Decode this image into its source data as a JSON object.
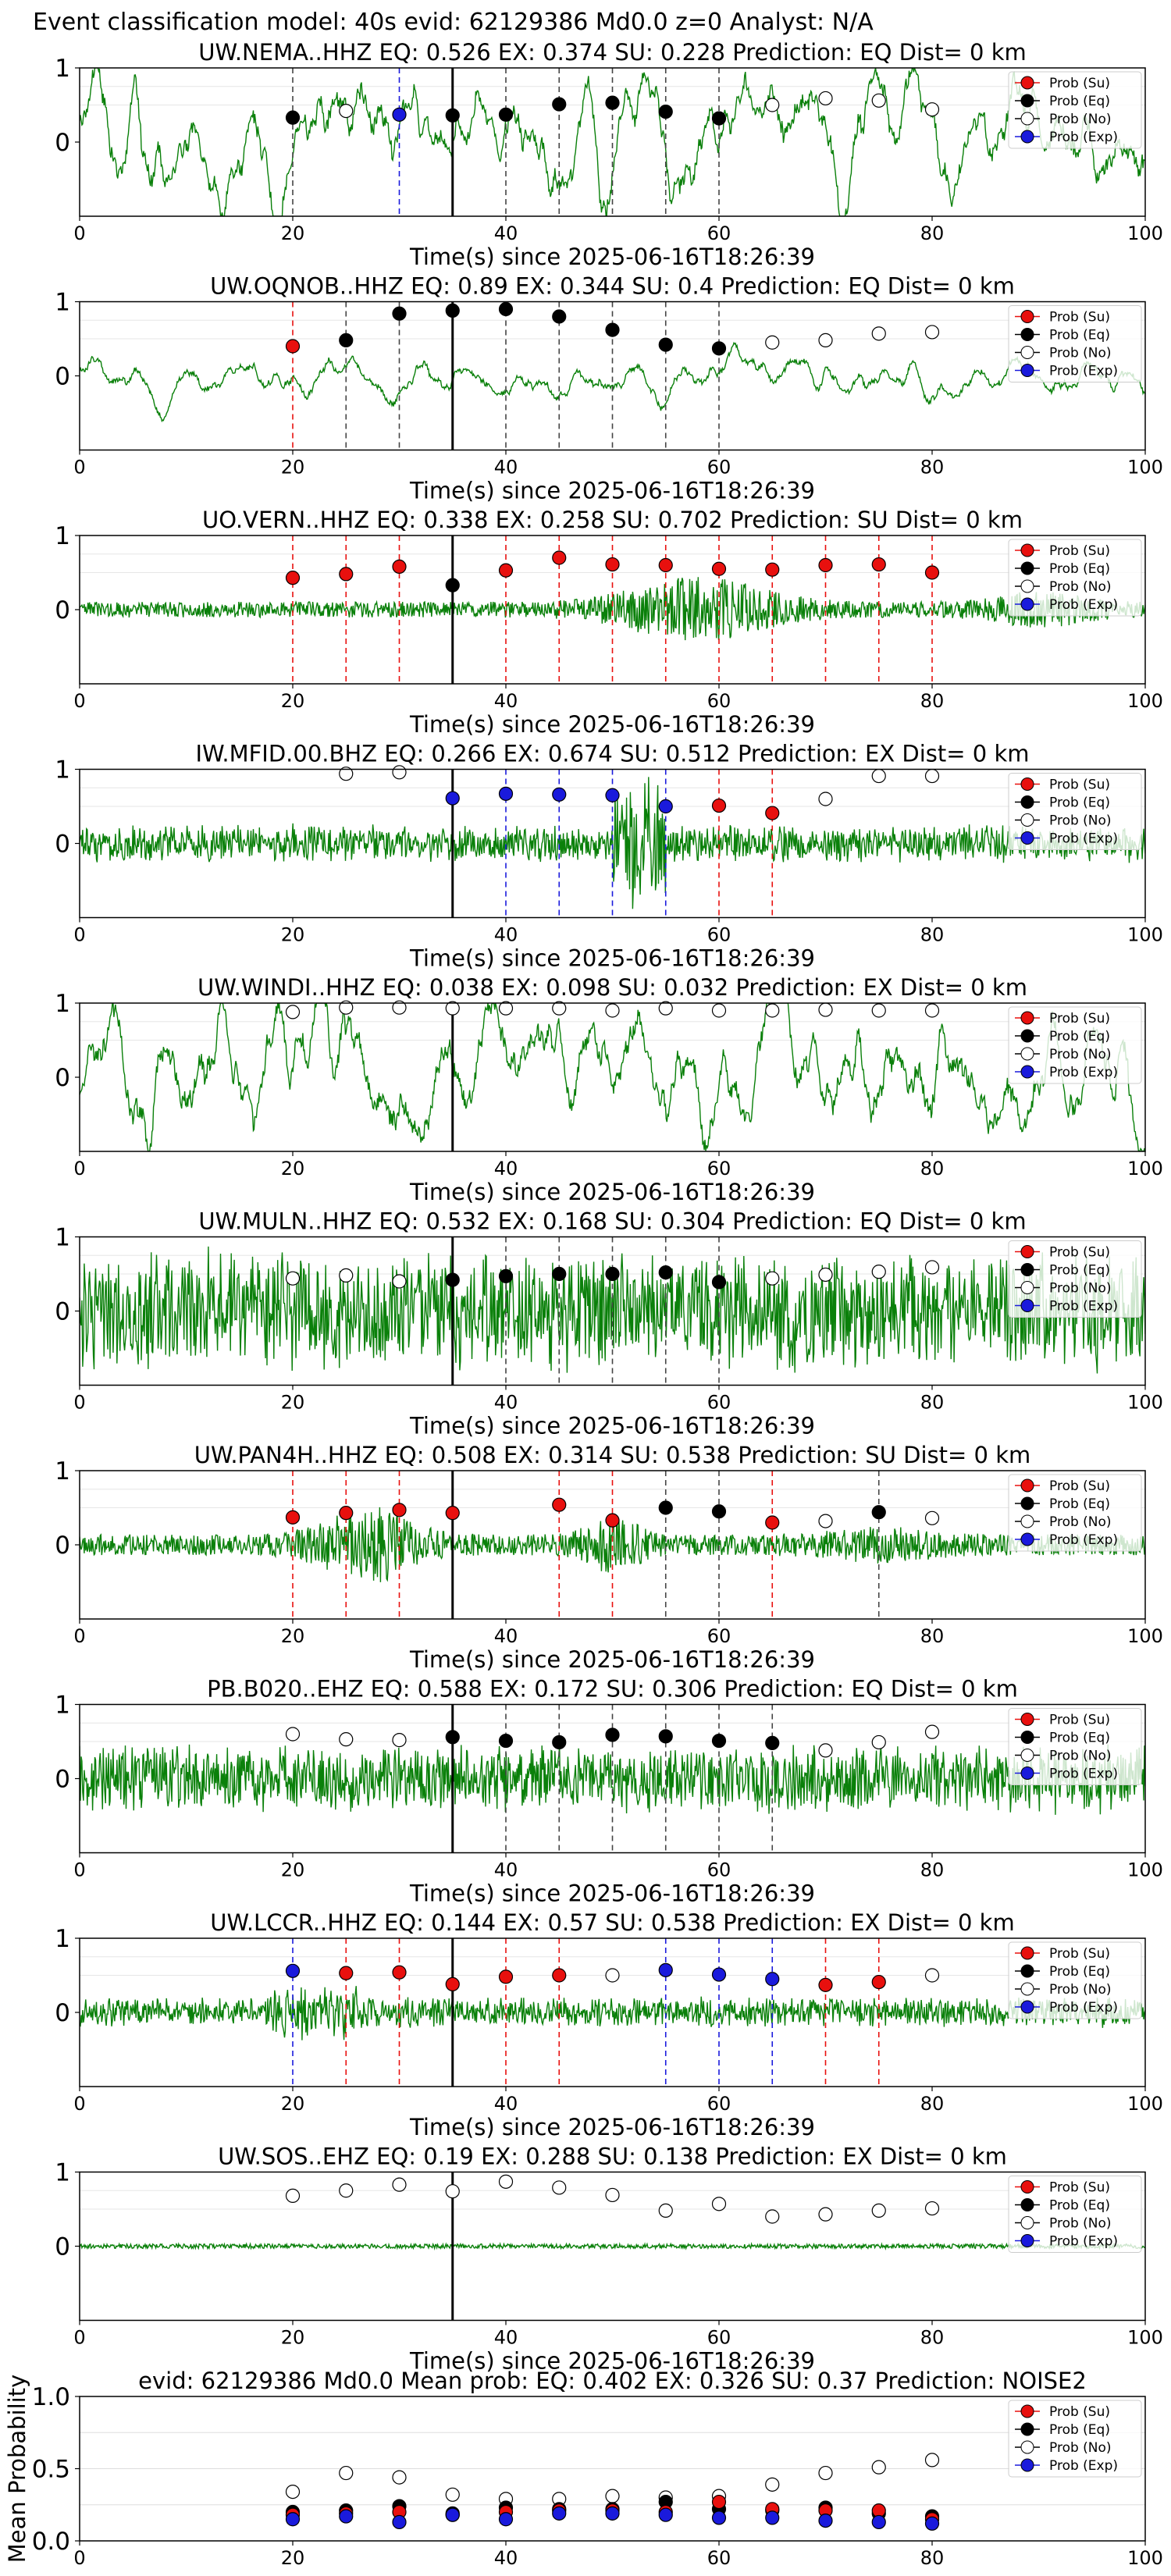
{
  "suptitle": "Event classification model: 40s evid: 62129386 Md0.0 z=0 Analyst: N/A",
  "legend_labels": [
    "Prob (Su)",
    "Prob (Eq)",
    "Prob (No)",
    "Prob (Exp)"
  ],
  "colors": {
    "Su": "#e8100e",
    "Eq": "#000000",
    "No": "#ffffff",
    "Exp": "#1a1adc",
    "trace": "#0a800a"
  },
  "chart_data": [
    {
      "type": "line",
      "title": "UW.NEMA..HHZ   EQ: 0.526  EX: 0.374  SU: 0.228   Prediction: EQ    Dist= 0 km",
      "xlabel": "Time(s) since 2025-06-16T18:26:39",
      "xlim": [
        0,
        100
      ],
      "ylim": [
        -1,
        1
      ],
      "xticks": [
        "0",
        "20",
        "40",
        "60",
        "80",
        "100"
      ],
      "yticks": [
        "1",
        "0"
      ],
      "trace": {
        "style": "lowfreq",
        "amplitude": 0.75,
        "seed": 1
      },
      "event_line_x": 35,
      "points": [
        {
          "x": 20,
          "y": 0.33,
          "class": "Eq"
        },
        {
          "x": 25,
          "y": 0.42,
          "class": "No"
        },
        {
          "x": 30,
          "y": 0.37,
          "class": "Exp"
        },
        {
          "x": 35,
          "y": 0.36,
          "class": "Eq"
        },
        {
          "x": 40,
          "y": 0.37,
          "class": "Eq"
        },
        {
          "x": 45,
          "y": 0.51,
          "class": "Eq"
        },
        {
          "x": 50,
          "y": 0.53,
          "class": "Eq"
        },
        {
          "x": 55,
          "y": 0.41,
          "class": "Eq"
        },
        {
          "x": 60,
          "y": 0.32,
          "class": "Eq"
        },
        {
          "x": 65,
          "y": 0.5,
          "class": "No"
        },
        {
          "x": 70,
          "y": 0.59,
          "class": "No"
        },
        {
          "x": 75,
          "y": 0.56,
          "class": "No"
        },
        {
          "x": 80,
          "y": 0.44,
          "class": "No"
        }
      ]
    },
    {
      "type": "line",
      "title": "UW.OQNOB..HHZ   EQ: 0.89  EX: 0.344  SU: 0.4   Prediction: EQ    Dist= 0 km",
      "xlabel": "Time(s) since 2025-06-16T18:26:39",
      "xlim": [
        0,
        100
      ],
      "ylim": [
        -1,
        1
      ],
      "xticks": [
        "0",
        "20",
        "40",
        "60",
        "80",
        "100"
      ],
      "yticks": [
        "1",
        "0"
      ],
      "trace": {
        "style": "lowfreq",
        "amplitude": 0.25,
        "seed": 2
      },
      "event_line_x": 35,
      "points": [
        {
          "x": 20,
          "y": 0.4,
          "class": "Su"
        },
        {
          "x": 25,
          "y": 0.48,
          "class": "Eq"
        },
        {
          "x": 30,
          "y": 0.84,
          "class": "Eq"
        },
        {
          "x": 35,
          "y": 0.88,
          "class": "Eq"
        },
        {
          "x": 40,
          "y": 0.9,
          "class": "Eq"
        },
        {
          "x": 45,
          "y": 0.8,
          "class": "Eq"
        },
        {
          "x": 50,
          "y": 0.62,
          "class": "Eq"
        },
        {
          "x": 55,
          "y": 0.42,
          "class": "Eq"
        },
        {
          "x": 60,
          "y": 0.37,
          "class": "Eq"
        },
        {
          "x": 65,
          "y": 0.45,
          "class": "No"
        },
        {
          "x": 70,
          "y": 0.48,
          "class": "No"
        },
        {
          "x": 75,
          "y": 0.57,
          "class": "No"
        },
        {
          "x": 80,
          "y": 0.59,
          "class": "No"
        }
      ]
    },
    {
      "type": "line",
      "title": "UO.VERN..HHZ   EQ: 0.338  EX: 0.258  SU: 0.702   Prediction: SU    Dist= 0 km",
      "xlabel": "Time(s) since 2025-06-16T18:26:39",
      "xlim": [
        0,
        100
      ],
      "ylim": [
        -1,
        1
      ],
      "xticks": [
        "0",
        "20",
        "40",
        "60",
        "80",
        "100"
      ],
      "yticks": [
        "1",
        "0"
      ],
      "trace": {
        "style": "burst",
        "amplitude": 0.15,
        "seed": 3
      },
      "event_line_x": 35,
      "points": [
        {
          "x": 20,
          "y": 0.43,
          "class": "Su"
        },
        {
          "x": 25,
          "y": 0.48,
          "class": "Su"
        },
        {
          "x": 30,
          "y": 0.58,
          "class": "Su"
        },
        {
          "x": 35,
          "y": 0.33,
          "class": "Eq"
        },
        {
          "x": 40,
          "y": 0.53,
          "class": "Su"
        },
        {
          "x": 45,
          "y": 0.7,
          "class": "Su"
        },
        {
          "x": 50,
          "y": 0.61,
          "class": "Su"
        },
        {
          "x": 55,
          "y": 0.6,
          "class": "Su"
        },
        {
          "x": 60,
          "y": 0.55,
          "class": "Su"
        },
        {
          "x": 65,
          "y": 0.54,
          "class": "Su"
        },
        {
          "x": 70,
          "y": 0.6,
          "class": "Su"
        },
        {
          "x": 75,
          "y": 0.61,
          "class": "Su"
        },
        {
          "x": 80,
          "y": 0.5,
          "class": "Su"
        }
      ]
    },
    {
      "type": "line",
      "title": "IW.MFID.00.BHZ   EQ: 0.266  EX: 0.674  SU: 0.512   Prediction: EX    Dist= 0 km",
      "xlabel": "Time(s) since 2025-06-16T18:26:39",
      "xlim": [
        0,
        100
      ],
      "ylim": [
        -1,
        1
      ],
      "xticks": [
        "0",
        "20",
        "40",
        "60",
        "80",
        "100"
      ],
      "yticks": [
        "1",
        "0"
      ],
      "trace": {
        "style": "noise",
        "amplitude": 0.25,
        "seed": 4
      },
      "event_line_x": 35,
      "points": [
        {
          "x": 25,
          "y": 0.94,
          "class": "No"
        },
        {
          "x": 30,
          "y": 0.96,
          "class": "No"
        },
        {
          "x": 35,
          "y": 0.61,
          "class": "Exp"
        },
        {
          "x": 40,
          "y": 0.67,
          "class": "Exp"
        },
        {
          "x": 45,
          "y": 0.66,
          "class": "Exp"
        },
        {
          "x": 50,
          "y": 0.65,
          "class": "Exp"
        },
        {
          "x": 55,
          "y": 0.5,
          "class": "Exp"
        },
        {
          "x": 60,
          "y": 0.51,
          "class": "Su"
        },
        {
          "x": 65,
          "y": 0.41,
          "class": "Su"
        },
        {
          "x": 70,
          "y": 0.6,
          "class": "No"
        },
        {
          "x": 75,
          "y": 0.91,
          "class": "No"
        },
        {
          "x": 80,
          "y": 0.91,
          "class": "No"
        }
      ]
    },
    {
      "type": "line",
      "title": "UW.WINDI..HHZ   EQ: 0.038  EX: 0.098  SU: 0.032   Prediction: EX    Dist= 0 km",
      "xlabel": "Time(s) since 2025-06-16T18:26:39",
      "xlim": [
        0,
        100
      ],
      "ylim": [
        -1,
        1
      ],
      "xticks": [
        "0",
        "20",
        "40",
        "60",
        "80",
        "100"
      ],
      "yticks": [
        "1",
        "0"
      ],
      "trace": {
        "style": "lowfreq",
        "amplitude": 0.85,
        "seed": 5
      },
      "event_line_x": 35,
      "points": [
        {
          "x": 20,
          "y": 0.88,
          "class": "No"
        },
        {
          "x": 25,
          "y": 0.94,
          "class": "No"
        },
        {
          "x": 30,
          "y": 0.94,
          "class": "No"
        },
        {
          "x": 35,
          "y": 0.93,
          "class": "No"
        },
        {
          "x": 40,
          "y": 0.93,
          "class": "No"
        },
        {
          "x": 45,
          "y": 0.93,
          "class": "No"
        },
        {
          "x": 50,
          "y": 0.9,
          "class": "No"
        },
        {
          "x": 55,
          "y": 0.93,
          "class": "No"
        },
        {
          "x": 60,
          "y": 0.9,
          "class": "No"
        },
        {
          "x": 65,
          "y": 0.9,
          "class": "No"
        },
        {
          "x": 70,
          "y": 0.91,
          "class": "No"
        },
        {
          "x": 75,
          "y": 0.9,
          "class": "No"
        },
        {
          "x": 80,
          "y": 0.9,
          "class": "No"
        }
      ]
    },
    {
      "type": "line",
      "title": "UW.MULN..HHZ   EQ: 0.532  EX: 0.168  SU: 0.304   Prediction: EQ    Dist= 0 km",
      "xlabel": "Time(s) since 2025-06-16T18:26:39",
      "xlim": [
        0,
        100
      ],
      "ylim": [
        -1,
        1
      ],
      "xticks": [
        "0",
        "20",
        "40",
        "60",
        "80",
        "100"
      ],
      "yticks": [
        "1",
        "0"
      ],
      "trace": {
        "style": "noise",
        "amplitude": 0.8,
        "seed": 6
      },
      "event_line_x": 35,
      "points": [
        {
          "x": 20,
          "y": 0.44,
          "class": "No"
        },
        {
          "x": 25,
          "y": 0.48,
          "class": "No"
        },
        {
          "x": 30,
          "y": 0.4,
          "class": "No"
        },
        {
          "x": 35,
          "y": 0.42,
          "class": "Eq"
        },
        {
          "x": 40,
          "y": 0.47,
          "class": "Eq"
        },
        {
          "x": 45,
          "y": 0.5,
          "class": "Eq"
        },
        {
          "x": 50,
          "y": 0.5,
          "class": "Eq"
        },
        {
          "x": 55,
          "y": 0.52,
          "class": "Eq"
        },
        {
          "x": 60,
          "y": 0.39,
          "class": "Eq"
        },
        {
          "x": 65,
          "y": 0.44,
          "class": "No"
        },
        {
          "x": 70,
          "y": 0.49,
          "class": "No"
        },
        {
          "x": 75,
          "y": 0.53,
          "class": "No"
        },
        {
          "x": 80,
          "y": 0.59,
          "class": "No"
        }
      ]
    },
    {
      "type": "line",
      "title": "UW.PAN4H..HHZ   EQ: 0.508  EX: 0.314  SU: 0.538   Prediction: SU    Dist= 0 km",
      "xlabel": "Time(s) since 2025-06-16T18:26:39",
      "xlim": [
        0,
        100
      ],
      "ylim": [
        -1,
        1
      ],
      "xticks": [
        "0",
        "20",
        "40",
        "60",
        "80",
        "100"
      ],
      "yticks": [
        "1",
        "0"
      ],
      "trace": {
        "style": "burst2",
        "amplitude": 0.2,
        "seed": 7
      },
      "event_line_x": 35,
      "points": [
        {
          "x": 20,
          "y": 0.37,
          "class": "Su"
        },
        {
          "x": 25,
          "y": 0.43,
          "class": "Su"
        },
        {
          "x": 30,
          "y": 0.47,
          "class": "Su"
        },
        {
          "x": 35,
          "y": 0.43,
          "class": "Su"
        },
        {
          "x": 45,
          "y": 0.54,
          "class": "Su"
        },
        {
          "x": 50,
          "y": 0.33,
          "class": "Su"
        },
        {
          "x": 55,
          "y": 0.5,
          "class": "Eq"
        },
        {
          "x": 60,
          "y": 0.45,
          "class": "Eq"
        },
        {
          "x": 65,
          "y": 0.3,
          "class": "Su"
        },
        {
          "x": 70,
          "y": 0.32,
          "class": "No"
        },
        {
          "x": 75,
          "y": 0.44,
          "class": "Eq"
        },
        {
          "x": 80,
          "y": 0.36,
          "class": "No"
        }
      ]
    },
    {
      "type": "line",
      "title": "PB.B020..EHZ   EQ: 0.588  EX: 0.172  SU: 0.306   Prediction: EQ    Dist= 0 km",
      "xlabel": "Time(s) since 2025-06-16T18:26:39",
      "xlim": [
        0,
        100
      ],
      "ylim": [
        -1,
        1
      ],
      "xticks": [
        "0",
        "20",
        "40",
        "60",
        "80",
        "100"
      ],
      "yticks": [
        "1",
        "0"
      ],
      "trace": {
        "style": "noise",
        "amplitude": 0.45,
        "seed": 8
      },
      "event_line_x": 35,
      "points": [
        {
          "x": 20,
          "y": 0.6,
          "class": "No"
        },
        {
          "x": 25,
          "y": 0.53,
          "class": "No"
        },
        {
          "x": 30,
          "y": 0.52,
          "class": "No"
        },
        {
          "x": 35,
          "y": 0.56,
          "class": "Eq"
        },
        {
          "x": 40,
          "y": 0.51,
          "class": "Eq"
        },
        {
          "x": 45,
          "y": 0.49,
          "class": "Eq"
        },
        {
          "x": 50,
          "y": 0.59,
          "class": "Eq"
        },
        {
          "x": 55,
          "y": 0.57,
          "class": "Eq"
        },
        {
          "x": 60,
          "y": 0.51,
          "class": "Eq"
        },
        {
          "x": 65,
          "y": 0.48,
          "class": "Eq"
        },
        {
          "x": 70,
          "y": 0.38,
          "class": "No"
        },
        {
          "x": 75,
          "y": 0.49,
          "class": "No"
        },
        {
          "x": 80,
          "y": 0.63,
          "class": "No"
        }
      ]
    },
    {
      "type": "line",
      "title": "UW.LCCR..HHZ   EQ: 0.144  EX: 0.57  SU: 0.538   Prediction: EX    Dist= 0 km",
      "xlabel": "Time(s) since 2025-06-16T18:26:39",
      "xlim": [
        0,
        100
      ],
      "ylim": [
        -1,
        1
      ],
      "xticks": [
        "0",
        "20",
        "40",
        "60",
        "80",
        "100"
      ],
      "yticks": [
        "1",
        "0"
      ],
      "trace": {
        "style": "noise",
        "amplitude": 0.2,
        "seed": 9
      },
      "event_line_x": 35,
      "points": [
        {
          "x": 20,
          "y": 0.56,
          "class": "Exp"
        },
        {
          "x": 25,
          "y": 0.53,
          "class": "Su"
        },
        {
          "x": 30,
          "y": 0.54,
          "class": "Su"
        },
        {
          "x": 35,
          "y": 0.38,
          "class": "Su"
        },
        {
          "x": 40,
          "y": 0.48,
          "class": "Su"
        },
        {
          "x": 45,
          "y": 0.5,
          "class": "Su"
        },
        {
          "x": 50,
          "y": 0.5,
          "class": "No"
        },
        {
          "x": 55,
          "y": 0.57,
          "class": "Exp"
        },
        {
          "x": 60,
          "y": 0.51,
          "class": "Exp"
        },
        {
          "x": 65,
          "y": 0.45,
          "class": "Exp"
        },
        {
          "x": 70,
          "y": 0.37,
          "class": "Su"
        },
        {
          "x": 75,
          "y": 0.41,
          "class": "Su"
        },
        {
          "x": 80,
          "y": 0.5,
          "class": "No"
        }
      ]
    },
    {
      "type": "line",
      "title": "UW.SOS..EHZ   EQ: 0.19  EX: 0.288  SU: 0.138   Prediction: EX    Dist= 0 km",
      "xlabel": "Time(s) since 2025-06-16T18:26:39",
      "xlim": [
        0,
        100
      ],
      "ylim": [
        -1,
        1
      ],
      "xticks": [
        "0",
        "20",
        "40",
        "60",
        "80",
        "100"
      ],
      "yticks": [
        "1",
        "0"
      ],
      "trace": {
        "style": "flat",
        "amplitude": 0.05,
        "seed": 10
      },
      "event_line_x": 35,
      "points": [
        {
          "x": 20,
          "y": 0.68,
          "class": "No"
        },
        {
          "x": 25,
          "y": 0.75,
          "class": "No"
        },
        {
          "x": 30,
          "y": 0.83,
          "class": "No"
        },
        {
          "x": 35,
          "y": 0.74,
          "class": "No"
        },
        {
          "x": 40,
          "y": 0.87,
          "class": "No"
        },
        {
          "x": 45,
          "y": 0.79,
          "class": "No"
        },
        {
          "x": 50,
          "y": 0.69,
          "class": "No"
        },
        {
          "x": 55,
          "y": 0.48,
          "class": "No"
        },
        {
          "x": 60,
          "y": 0.57,
          "class": "No"
        },
        {
          "x": 65,
          "y": 0.4,
          "class": "No"
        },
        {
          "x": 70,
          "y": 0.43,
          "class": "No"
        },
        {
          "x": 75,
          "y": 0.48,
          "class": "No"
        },
        {
          "x": 80,
          "y": 0.51,
          "class": "No"
        }
      ]
    },
    {
      "type": "scatter",
      "title": "evid: 62129386  Md0.0   Mean prob:   EQ: 0.402  EX: 0.326  SU: 0.37   Prediction: NOISE2",
      "xlabel": "",
      "ylabel": "Mean Probability",
      "xlim": [
        0,
        100
      ],
      "ylim": [
        0,
        1
      ],
      "xticks": [
        "0",
        "20",
        "40",
        "60",
        "80",
        "100"
      ],
      "yticks": [
        "1.0",
        "0.5",
        "0.0"
      ],
      "series": [
        {
          "name": "Prob (No)",
          "class": "No",
          "x": [
            20,
            25,
            30,
            35,
            40,
            45,
            50,
            55,
            60,
            65,
            70,
            75,
            80
          ],
          "y": [
            0.34,
            0.47,
            0.44,
            0.32,
            0.29,
            0.29,
            0.31,
            0.3,
            0.31,
            0.39,
            0.47,
            0.51,
            0.56
          ]
        },
        {
          "name": "Prob (Eq)",
          "class": "Eq",
          "x": [
            20,
            25,
            30,
            35,
            40,
            45,
            50,
            55,
            60,
            65,
            70,
            75,
            80
          ],
          "y": [
            0.2,
            0.21,
            0.24,
            0.19,
            0.23,
            0.22,
            0.22,
            0.27,
            0.22,
            0.21,
            0.23,
            0.19,
            0.17
          ]
        },
        {
          "name": "Prob (Su)",
          "class": "Su",
          "x": [
            20,
            25,
            30,
            35,
            40,
            45,
            50,
            55,
            60,
            65,
            70,
            75,
            80
          ],
          "y": [
            0.18,
            0.19,
            0.2,
            0.18,
            0.2,
            0.21,
            0.21,
            0.2,
            0.27,
            0.22,
            0.21,
            0.21,
            0.15
          ]
        },
        {
          "name": "Prob (Exp)",
          "class": "Exp",
          "x": [
            20,
            25,
            30,
            35,
            40,
            45,
            50,
            55,
            60,
            65,
            70,
            75,
            80
          ],
          "y": [
            0.15,
            0.17,
            0.13,
            0.18,
            0.15,
            0.19,
            0.19,
            0.18,
            0.16,
            0.16,
            0.14,
            0.13,
            0.12
          ]
        }
      ]
    }
  ]
}
